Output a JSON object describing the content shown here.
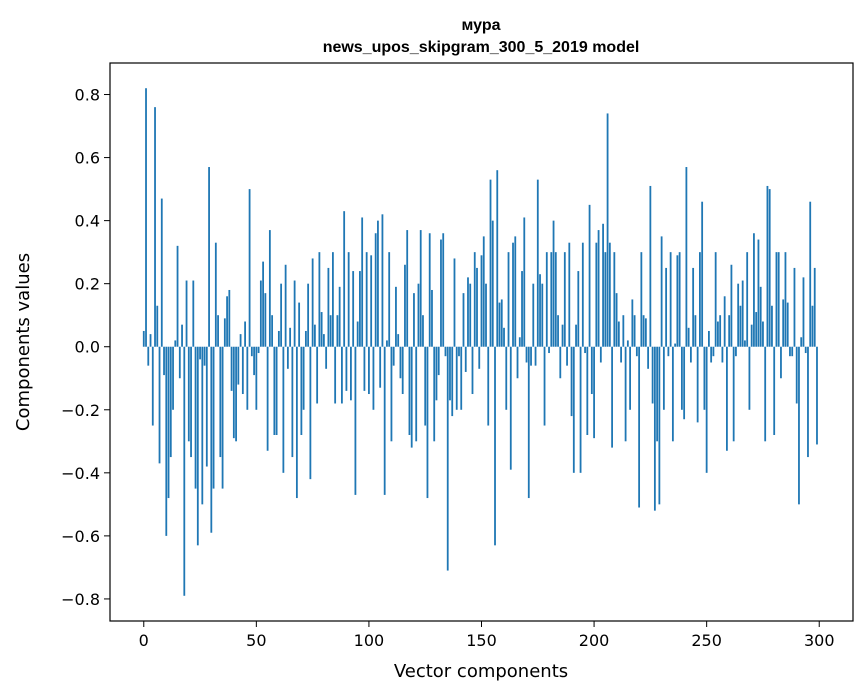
{
  "chart_data": {
    "type": "bar",
    "title_line1": "мура",
    "title_line2": "news_upos_skipgram_300_5_2019 model",
    "xlabel": "Vector components",
    "ylabel": "Components values",
    "xlim": [
      -15,
      315
    ],
    "ylim": [
      -0.87,
      0.9
    ],
    "xticks": [
      0,
      50,
      100,
      150,
      200,
      250,
      300
    ],
    "yticks": [
      -0.8,
      -0.6,
      -0.4,
      -0.2,
      0.0,
      0.2,
      0.4,
      0.6,
      0.8
    ],
    "ytick_labels": [
      "−0.8",
      "−0.6",
      "−0.4",
      "−0.2",
      "0.0",
      "0.2",
      "0.4",
      "0.6",
      "0.8"
    ],
    "grid": false,
    "bar_color": "#1f77b4",
    "n_components": 300,
    "values": [
      0.05,
      0.82,
      -0.06,
      0.04,
      -0.25,
      0.76,
      0.13,
      -0.37,
      0.47,
      -0.09,
      -0.6,
      -0.48,
      -0.35,
      -0.2,
      0.02,
      0.32,
      -0.1,
      0.07,
      -0.79,
      0.21,
      -0.3,
      -0.35,
      0.21,
      -0.45,
      -0.63,
      -0.04,
      -0.5,
      -0.06,
      -0.38,
      0.57,
      -0.59,
      -0.45,
      0.33,
      0.1,
      -0.35,
      -0.45,
      0.09,
      0.16,
      0.18,
      -0.14,
      -0.29,
      -0.3,
      -0.12,
      0.04,
      -0.15,
      0.08,
      -0.2,
      0.5,
      -0.03,
      -0.09,
      -0.2,
      -0.02,
      0.21,
      0.27,
      0.17,
      -0.33,
      0.37,
      0.1,
      -0.28,
      -0.28,
      0.05,
      0.2,
      -0.4,
      0.26,
      -0.07,
      0.06,
      -0.35,
      0.21,
      -0.48,
      0.14,
      -0.28,
      -0.2,
      0.05,
      0.2,
      -0.42,
      0.28,
      0.07,
      -0.18,
      0.3,
      0.11,
      0.04,
      -0.07,
      0.25,
      0.1,
      0.3,
      -0.18,
      0.1,
      0.19,
      -0.18,
      0.43,
      -0.14,
      0.3,
      -0.17,
      0.24,
      -0.47,
      0.08,
      0.24,
      0.41,
      -0.14,
      0.3,
      -0.15,
      0.29,
      -0.2,
      0.36,
      0.4,
      -0.13,
      0.42,
      -0.47,
      0.02,
      0.3,
      -0.3,
      -0.06,
      0.19,
      0.04,
      -0.1,
      -0.15,
      0.26,
      0.37,
      -0.28,
      -0.32,
      0.17,
      -0.3,
      0.2,
      0.37,
      0.1,
      -0.25,
      -0.48,
      0.36,
      0.18,
      -0.3,
      -0.17,
      -0.09,
      0.34,
      0.36,
      -0.03,
      -0.71,
      -0.17,
      -0.22,
      0.28,
      -0.2,
      -0.03,
      -0.2,
      0.17,
      -0.08,
      0.22,
      0.2,
      -0.15,
      0.3,
      0.25,
      -0.07,
      0.29,
      0.35,
      0.2,
      -0.25,
      0.53,
      0.4,
      -0.63,
      0.56,
      0.14,
      0.15,
      0.06,
      -0.2,
      0.3,
      -0.39,
      0.33,
      0.35,
      -0.1,
      0.03,
      0.24,
      0.41,
      -0.05,
      -0.48,
      -0.06,
      0.2,
      -0.06,
      0.53,
      0.23,
      0.2,
      -0.25,
      0.3,
      -0.02,
      0.3,
      0.4,
      0.3,
      0.1,
      -0.1,
      0.07,
      0.3,
      -0.06,
      0.33,
      -0.22,
      -0.4,
      0.07,
      0.24,
      -0.4,
      0.33,
      -0.02,
      -0.28,
      0.45,
      -0.15,
      -0.29,
      0.33,
      0.37,
      -0.05,
      0.39,
      0.3,
      0.74,
      0.33,
      -0.32,
      0.3,
      0.17,
      0.08,
      -0.05,
      0.1,
      -0.3,
      0.02,
      -0.2,
      0.15,
      0.1,
      -0.03,
      -0.51,
      0.3,
      0.1,
      0.09,
      -0.07,
      0.51,
      -0.18,
      -0.52,
      -0.3,
      -0.5,
      0.35,
      -0.2,
      0.25,
      -0.03,
      0.3,
      -0.3,
      0.01,
      0.29,
      0.3,
      -0.2,
      -0.23,
      0.57,
      0.06,
      -0.05,
      0.25,
      0.1,
      -0.24,
      0.3,
      0.46,
      -0.2,
      -0.4,
      0.05,
      -0.05,
      -0.03,
      0.3,
      0.08,
      0.1,
      -0.05,
      0.16,
      -0.33,
      0.1,
      0.26,
      -0.3,
      -0.03,
      0.2,
      0.13,
      0.21,
      0.02,
      0.3,
      -0.2,
      0.07,
      0.36,
      0.11,
      0.34,
      0.19,
      0.08,
      -0.3,
      0.51,
      0.5,
      0.13,
      -0.28,
      0.3,
      0.3,
      -0.1,
      0.15,
      0.3,
      0.14,
      -0.03,
      -0.03,
      0.25,
      -0.18,
      -0.5,
      0.03,
      0.22,
      -0.02,
      -0.35,
      0.46,
      0.13,
      0.25,
      -0.31
    ]
  }
}
